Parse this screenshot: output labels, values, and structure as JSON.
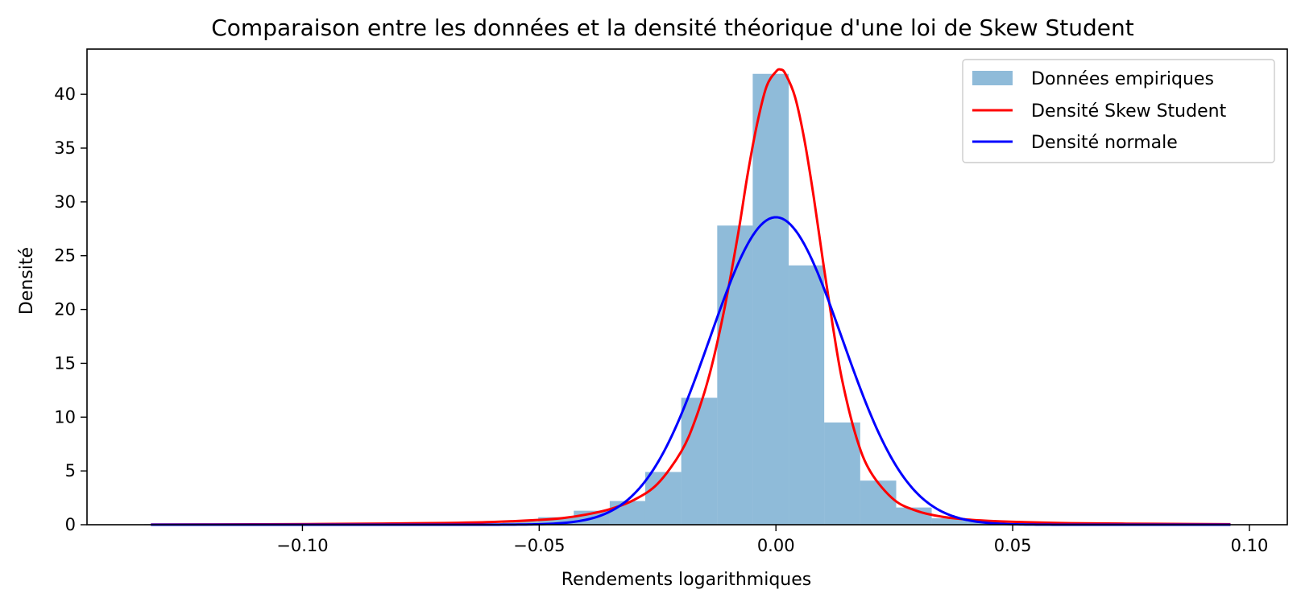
{
  "chart_data": {
    "type": "histogram",
    "title": "Comparaison entre les données et la densité théorique d'une loi de Skew Student",
    "xlabel": "Rendements logarithmiques",
    "ylabel": "Densité",
    "xlim": [
      -0.1455,
      0.108
    ],
    "ylim": [
      0,
      44.2
    ],
    "x_ticks": [
      {
        "value": -0.1,
        "label": "−0.10"
      },
      {
        "value": -0.05,
        "label": "−0.05"
      },
      {
        "value": 0.0,
        "label": "0.00"
      },
      {
        "value": 0.05,
        "label": "0.05"
      },
      {
        "value": 0.1,
        "label": "0.10"
      }
    ],
    "y_ticks": [
      {
        "value": 0,
        "label": "0"
      },
      {
        "value": 5,
        "label": "5"
      },
      {
        "value": 10,
        "label": "10"
      },
      {
        "value": 15,
        "label": "15"
      },
      {
        "value": 20,
        "label": "20"
      },
      {
        "value": 25,
        "label": "25"
      },
      {
        "value": 30,
        "label": "30"
      },
      {
        "value": 35,
        "label": "35"
      },
      {
        "value": 40,
        "label": "40"
      }
    ],
    "bin_edges": [
      -0.1334,
      -0.1258,
      -0.1183,
      -0.1107,
      -0.1032,
      -0.0956,
      -0.088,
      -0.0805,
      -0.0729,
      -0.0654,
      -0.0578,
      -0.0502,
      -0.0427,
      -0.0351,
      -0.0276,
      -0.02,
      -0.0124,
      -0.0049,
      0.0027,
      0.0102,
      0.0178,
      0.0254,
      0.0329,
      0.0405,
      0.048,
      0.0556,
      0.0632,
      0.0707,
      0.0783,
      0.0858,
      0.0934,
      0.101
    ],
    "bin_values": [
      0.05,
      0,
      0,
      0,
      0,
      0,
      0.03,
      0.05,
      0.1,
      0.15,
      0.3,
      0.7,
      1.3,
      2.2,
      4.9,
      11.8,
      27.8,
      41.9,
      24.1,
      9.5,
      4.1,
      1.6,
      0.6,
      0.3,
      0.15,
      0.1,
      0.05,
      0.03,
      0.02,
      0.01,
      0.01
    ],
    "series": [
      {
        "name": "Données empiriques",
        "kind": "histogram",
        "color": "#1f77b4",
        "alpha": 0.5
      },
      {
        "name": "Densité Skew Student",
        "kind": "line",
        "color": "#ff0000",
        "x": [
          -0.132,
          -0.11,
          -0.09,
          -0.07,
          -0.06,
          -0.05,
          -0.045,
          -0.04,
          -0.035,
          -0.03,
          -0.025,
          -0.02,
          -0.017,
          -0.014,
          -0.011,
          -0.008,
          -0.006,
          -0.004,
          -0.002,
          0.0,
          0.001,
          0.002,
          0.004,
          0.006,
          0.008,
          0.01,
          0.012,
          0.014,
          0.017,
          0.02,
          0.025,
          0.03,
          0.035,
          0.04,
          0.045,
          0.05,
          0.06,
          0.07,
          0.08,
          0.096
        ],
        "y": [
          0.02,
          0.04,
          0.08,
          0.16,
          0.25,
          0.45,
          0.62,
          0.95,
          1.45,
          2.3,
          3.8,
          6.8,
          9.8,
          14.0,
          19.8,
          27.0,
          32.5,
          37.2,
          40.7,
          42.1,
          42.3,
          41.9,
          39.8,
          35.8,
          30.4,
          24.3,
          18.5,
          13.4,
          8.1,
          4.9,
          2.3,
          1.25,
          0.75,
          0.5,
          0.36,
          0.27,
          0.16,
          0.11,
          0.08,
          0.05
        ]
      },
      {
        "name": "Densité normale",
        "kind": "line",
        "color": "#0000ff",
        "mu": 0.0,
        "sigma": 0.01396,
        "x_range": [
          -0.132,
          0.096
        ]
      }
    ],
    "grid": false,
    "legend_position": "top-right"
  }
}
